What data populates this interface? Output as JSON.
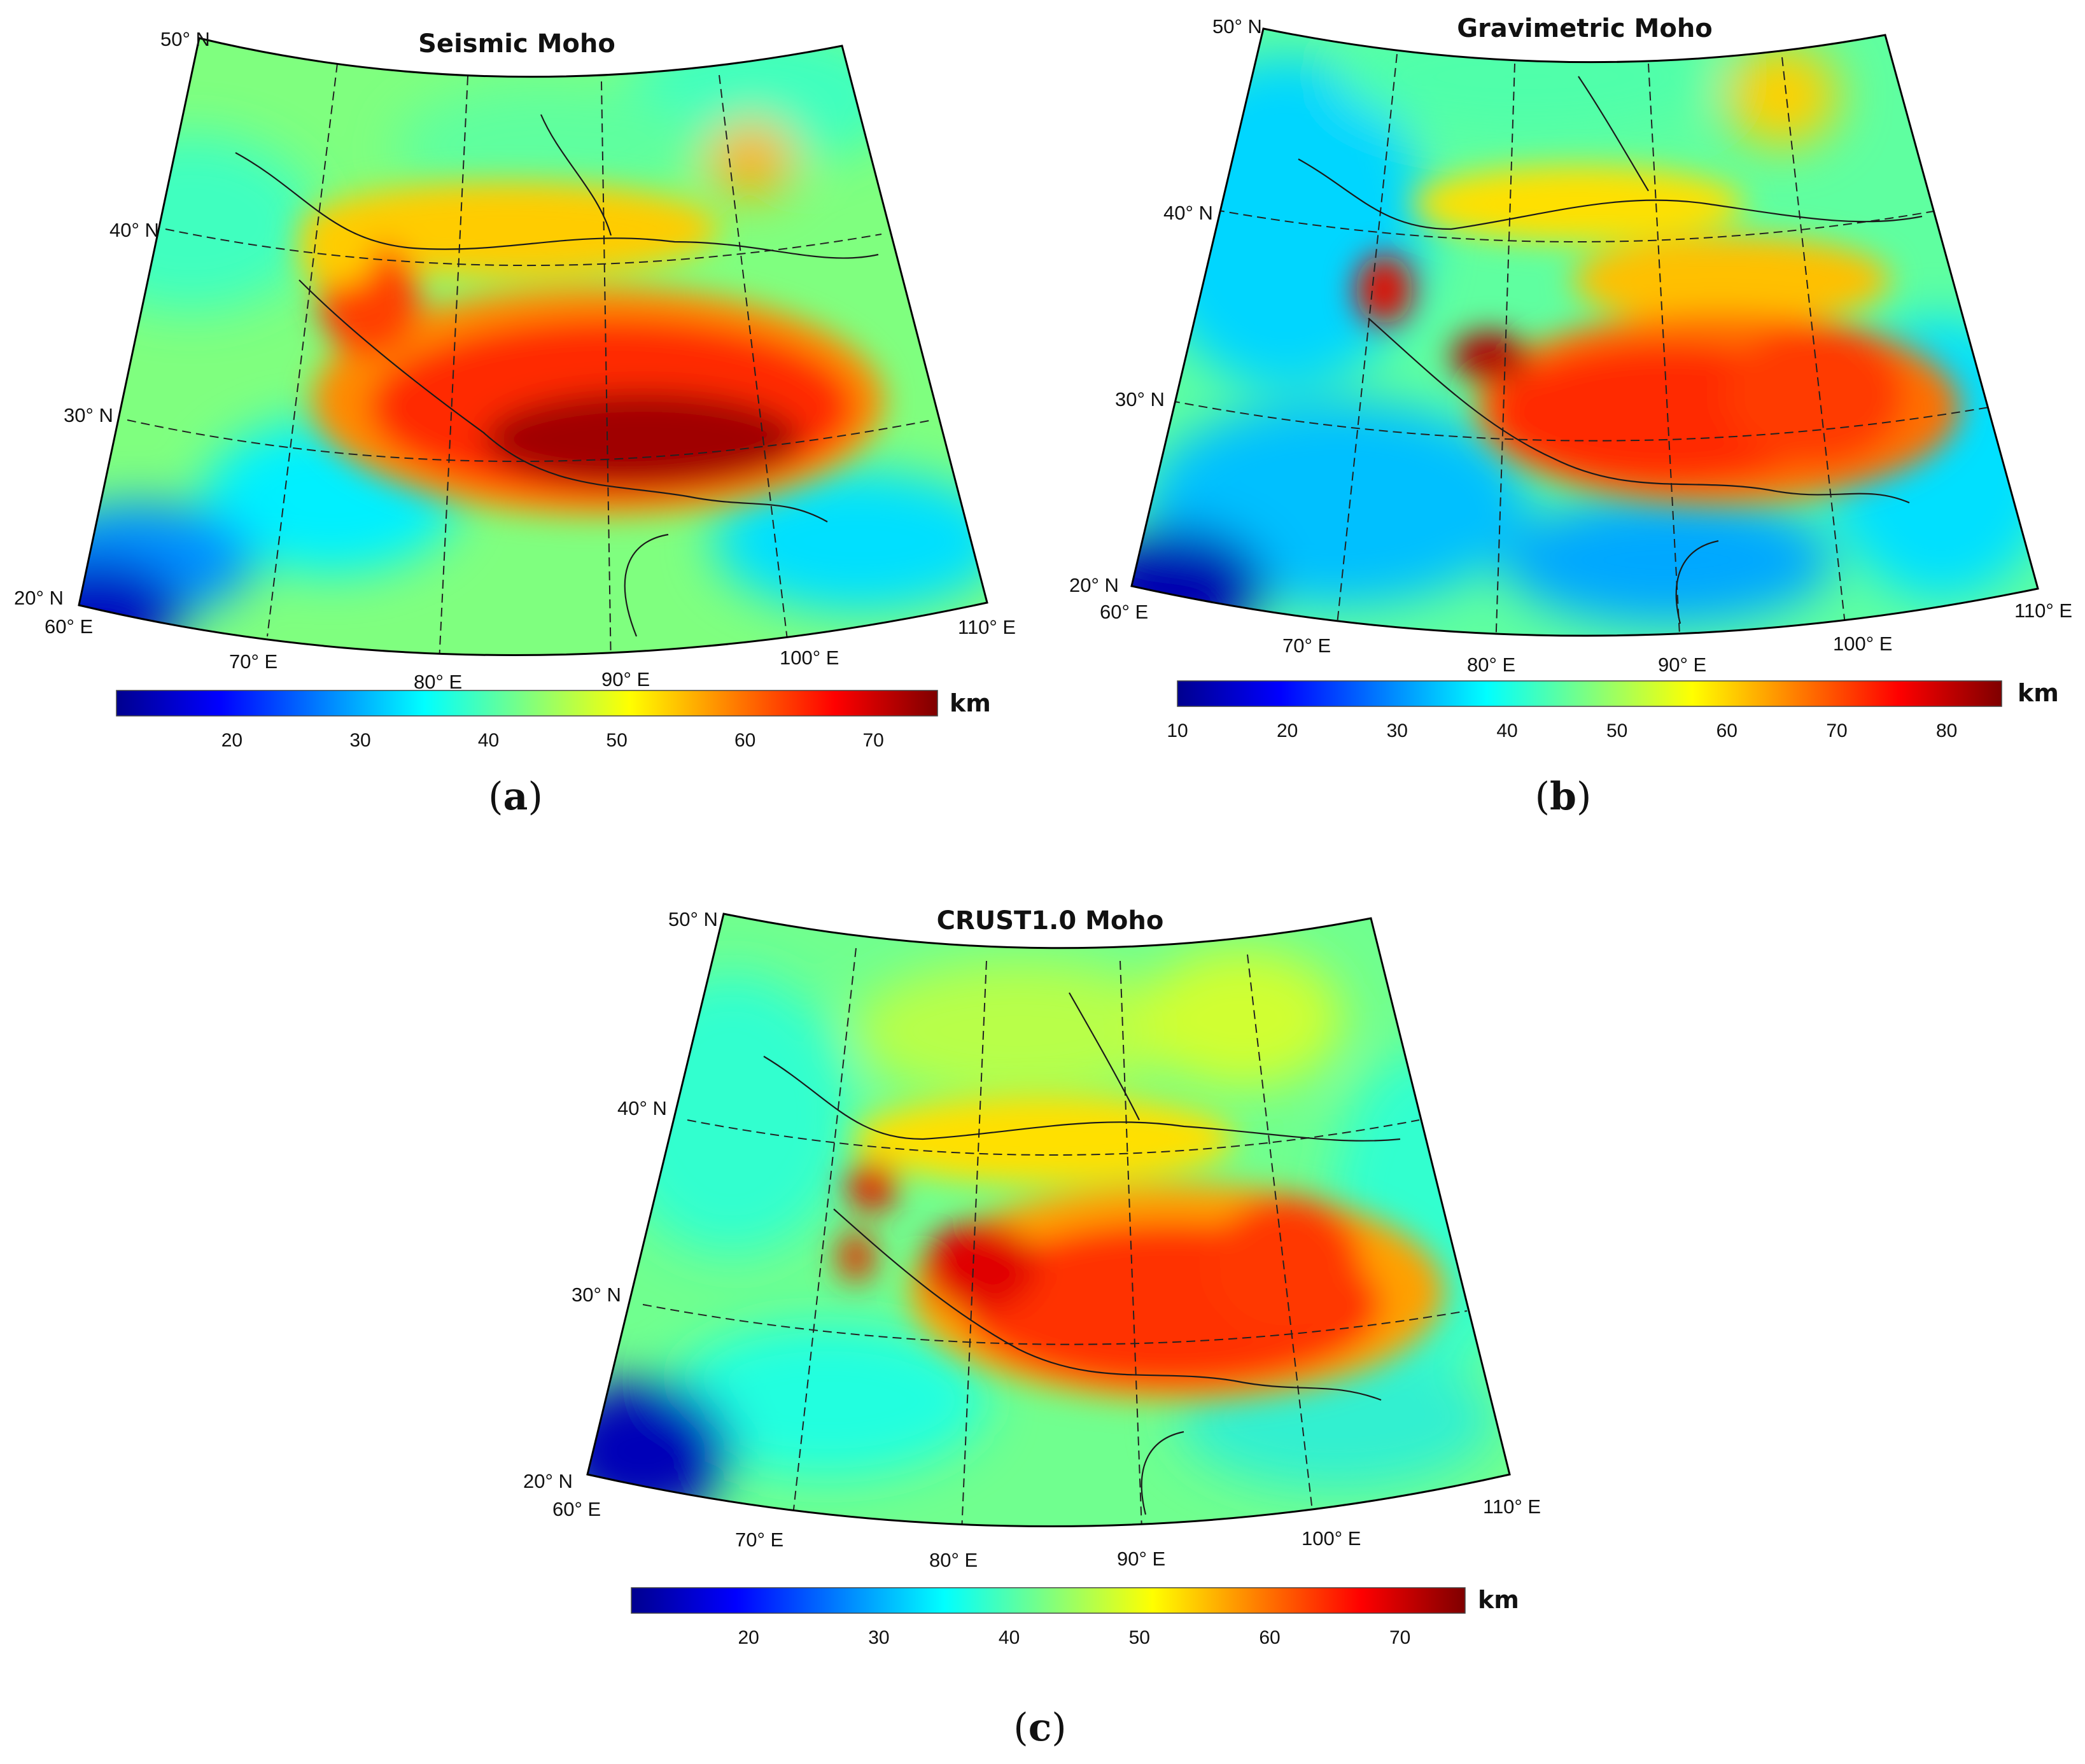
{
  "figure": {
    "panels": [
      {
        "id": "a",
        "title": "Seismic Moho",
        "caption_open": "(",
        "caption_letter": "a",
        "caption_close": ")",
        "unit": "km",
        "colorbar_ticks": [
          "20",
          "30",
          "40",
          "50",
          "60",
          "70"
        ],
        "colorbar_range_km": [
          11,
          75
        ],
        "lat_labels": [
          "50° N",
          "40° N",
          "30° N",
          "20° N"
        ],
        "lon_labels": [
          "60° E",
          "70° E",
          "80° E",
          "90° E",
          "100° E",
          "110° E"
        ]
      },
      {
        "id": "b",
        "title": "Gravimetric Moho",
        "caption_open": "(",
        "caption_letter": "b",
        "caption_close": ")",
        "unit": "km",
        "colorbar_ticks": [
          "10",
          "20",
          "30",
          "40",
          "50",
          "60",
          "70",
          "80"
        ],
        "colorbar_range_km": [
          10,
          85
        ],
        "lat_labels": [
          "50° N",
          "40° N",
          "30° N",
          "20° N"
        ],
        "lon_labels": [
          "60° E",
          "70° E",
          "80° E",
          "90° E",
          "100° E",
          "110° E"
        ]
      },
      {
        "id": "c",
        "title": "CRUST1.0  Moho",
        "caption_open": "(",
        "caption_letter": "c",
        "caption_close": ")",
        "unit": "km",
        "colorbar_ticks": [
          "20",
          "30",
          "40",
          "50",
          "60",
          "70"
        ],
        "colorbar_range_km": [
          11,
          75
        ],
        "lat_labels": [
          "50° N",
          "40° N",
          "30° N",
          "20° N"
        ],
        "lon_labels": [
          "60° E",
          "70° E",
          "80° E",
          "90° E",
          "100° E",
          "110° E"
        ]
      }
    ],
    "colormap": [
      "#00008f",
      "#0000ff",
      "#007fff",
      "#00ffff",
      "#7fff7f",
      "#ffff00",
      "#ff7f00",
      "#ff0000",
      "#7f0000"
    ]
  }
}
